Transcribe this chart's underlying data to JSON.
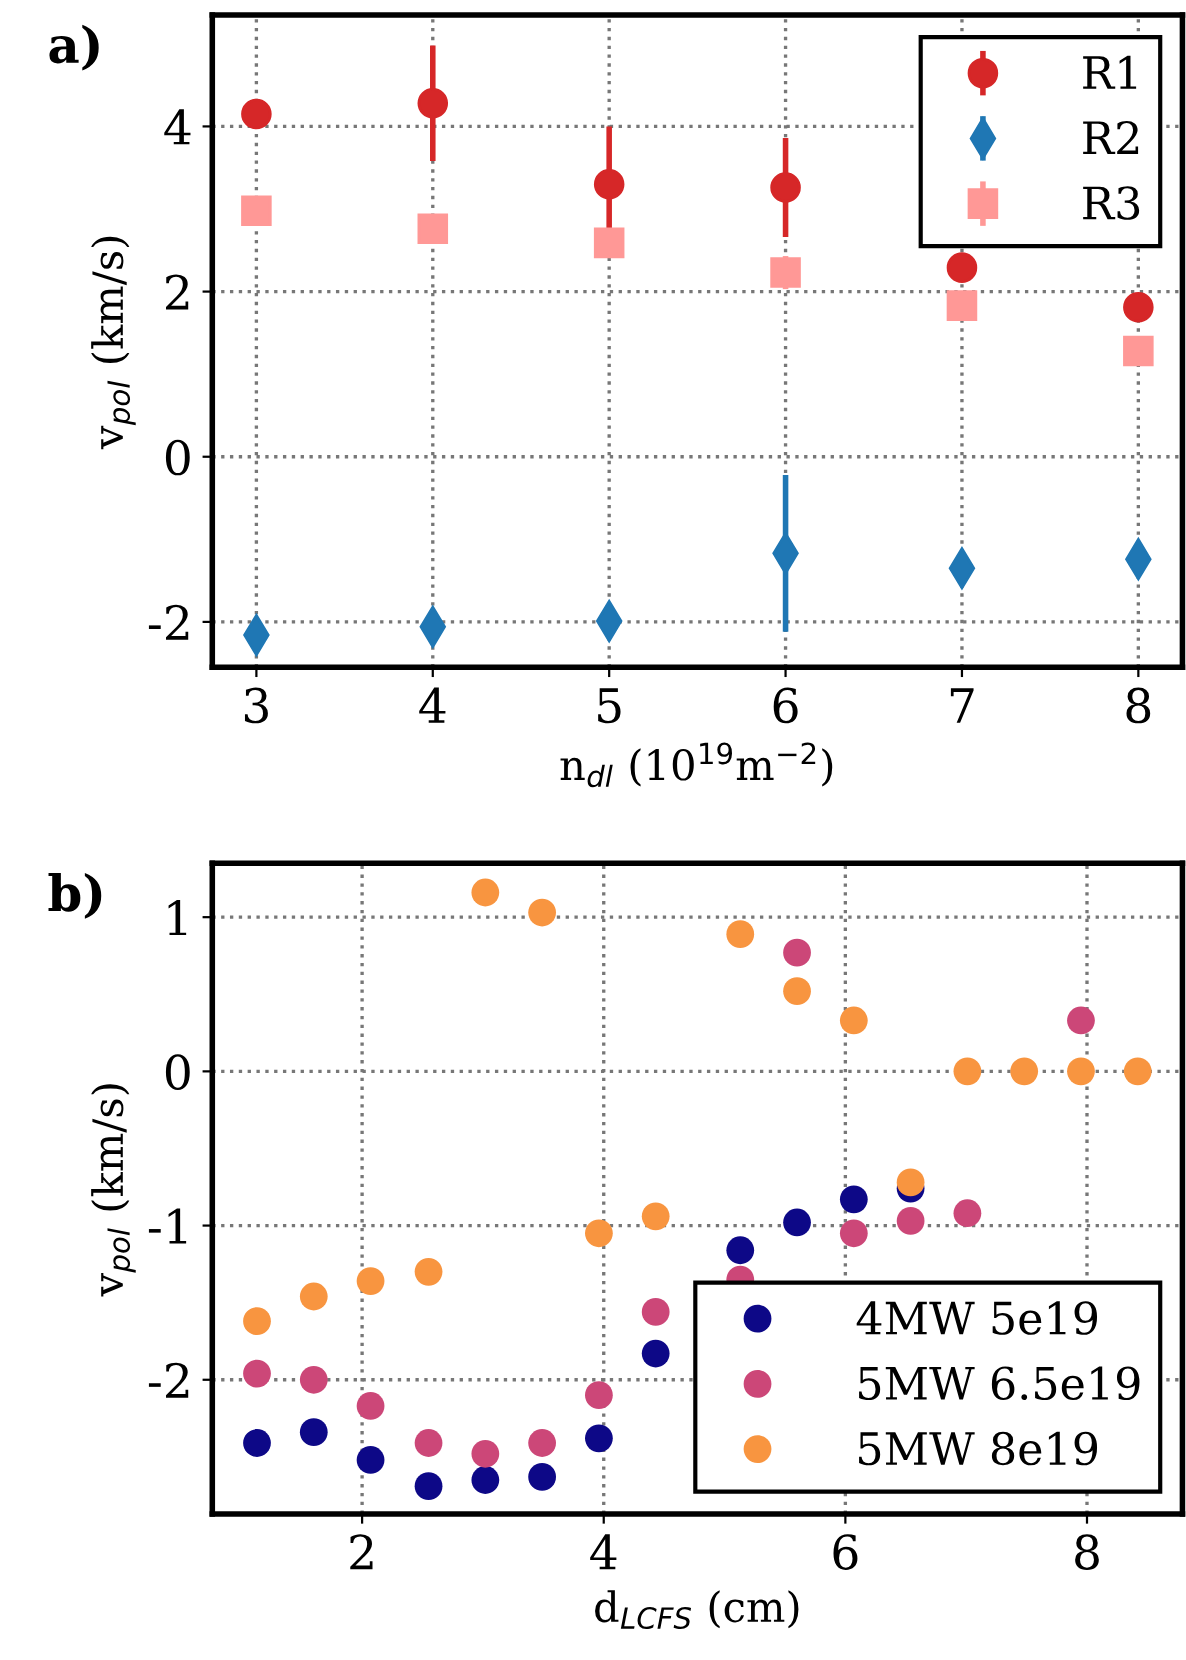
{
  "chart_data": [
    {
      "type": "scatter",
      "title": "a)",
      "xlabel": "n$_{dl}$ (10$^{19}$m$^{−2}$)",
      "ylabel": "v$_{pol}$ (km/s)",
      "x": [
        3,
        4,
        5,
        6,
        7,
        8
      ],
      "series": [
        {
          "name": "R1",
          "color": "#d62728",
          "marker": "circle",
          "values": [
            4.15,
            4.28,
            3.3,
            3.26,
            2.29,
            1.81
          ],
          "errors": [
            0.1,
            0.7,
            0.7,
            0.6,
            0.1,
            0.05
          ]
        },
        {
          "name": "R2",
          "color": "#1f77b4",
          "marker": "diamond",
          "values": [
            -2.16,
            -2.06,
            -1.99,
            -1.17,
            -1.35,
            -1.24
          ],
          "errors": [
            0.15,
            0.15,
            0.15,
            0.95,
            0.15,
            0.15
          ]
        },
        {
          "name": "R3",
          "color": "#ff9896",
          "marker": "square",
          "values": [
            2.98,
            2.76,
            2.59,
            2.23,
            1.83,
            1.28
          ],
          "errors": [
            0.1,
            0.1,
            0.1,
            0.2,
            0.1,
            0.1
          ]
        }
      ],
      "xlim": [
        2.75,
        8.25
      ],
      "xticks": [
        3,
        4,
        5,
        6,
        7,
        8
      ],
      "ylim": [
        -2.55,
        5.35
      ],
      "yticks": [
        -2,
        0,
        2,
        4
      ],
      "grid": true,
      "legend": "top right"
    },
    {
      "type": "scatter",
      "title": "b)",
      "xlabel": "d$_{LCFS}$ (cm)",
      "ylabel": "v$_{pol}$ (km/s)",
      "series": [
        {
          "name": "4MW 5e19",
          "color": "#0d0887",
          "marker": "circle",
          "x": [
            1.13,
            1.6,
            2.07,
            2.55,
            3.02,
            3.49,
            3.96,
            4.43,
            5.13,
            5.6,
            6.07,
            6.54
          ],
          "values": [
            -2.41,
            -2.34,
            -2.52,
            -2.69,
            -2.65,
            -2.63,
            -2.38,
            -1.83,
            -1.16,
            -0.98,
            -0.83,
            -0.76
          ]
        },
        {
          "name": "5MW 6.5e19",
          "color": "#cc4778",
          "marker": "circle",
          "x": [
            1.13,
            1.6,
            2.07,
            2.55,
            3.02,
            3.49,
            3.96,
            4.43,
            5.13,
            5.6,
            6.07,
            6.54,
            7.01,
            7.95
          ],
          "values": [
            -1.96,
            -2.0,
            -2.17,
            -2.41,
            -2.48,
            -2.41,
            -2.1,
            -1.56,
            -1.35,
            0.77,
            -1.05,
            -0.97,
            -0.92,
            0.33
          ]
        },
        {
          "name": "5MW 8e19",
          "color": "#f89540",
          "marker": "circle",
          "x": [
            1.13,
            1.6,
            2.07,
            2.55,
            3.02,
            3.49,
            3.96,
            4.43,
            5.13,
            5.6,
            6.07,
            6.54,
            7.01,
            7.48,
            7.95,
            8.42
          ],
          "values": [
            -1.62,
            -1.46,
            -1.36,
            -1.3,
            1.16,
            1.03,
            -1.05,
            -0.94,
            0.89,
            0.52,
            0.33,
            -0.72,
            0,
            0,
            0,
            0
          ]
        }
      ],
      "xlim": [
        0.76,
        8.79
      ],
      "xticks": [
        2,
        4,
        6,
        8
      ],
      "ylim": [
        -2.87,
        1.35
      ],
      "yticks": [
        -2,
        -1,
        0,
        1
      ],
      "grid": true,
      "legend": "bottom right"
    }
  ]
}
